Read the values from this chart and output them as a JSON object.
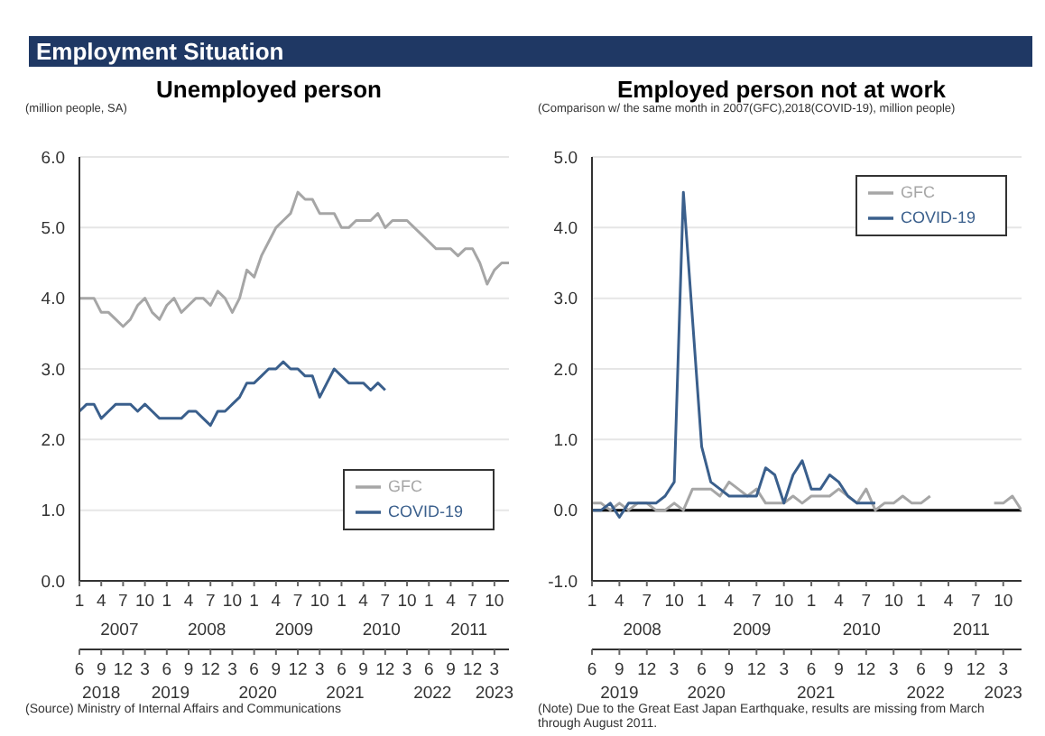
{
  "chart_data": [
    {
      "type": "line",
      "title": "Unemployed person",
      "ylabel": "(million people, SA)",
      "annotations": [
        "Employment Situation",
        "(Source) Ministry of Internal Affairs and Communications",
        "2007",
        "2008",
        "2009",
        "2010",
        "2011",
        "2018",
        "2019",
        "2020",
        "2021",
        "2022",
        "2023"
      ],
      "grid": "y",
      "legend": "bottom right",
      "marker": "none",
      "line_style": "solid",
      "ylim": [
        0,
        6
      ],
      "yticks": [
        {
          "value": 0,
          "label": "0.0"
        },
        {
          "value": 1,
          "label": "1.0"
        },
        {
          "value": 2,
          "label": "2.0"
        },
        {
          "value": 3,
          "label": "3.0"
        },
        {
          "value": 4,
          "label": "4.0"
        },
        {
          "value": 5,
          "label": "5.0"
        },
        {
          "value": 6,
          "label": "6.0"
        }
      ],
      "xlim": [
        "2007-01",
        "2011-12"
      ],
      "xticks": [
        {
          "value": "2007-01",
          "label": "1"
        },
        {
          "value": "2007-04",
          "label": "4"
        },
        {
          "value": "2007-07",
          "label": "7"
        },
        {
          "value": "2007-10",
          "label": "10"
        },
        {
          "value": "2008-01",
          "label": "1"
        },
        {
          "value": "2008-04",
          "label": "4"
        },
        {
          "value": "2008-07",
          "label": "7"
        },
        {
          "value": "2008-10",
          "label": "10"
        },
        {
          "value": "2009-01",
          "label": "1"
        },
        {
          "value": "2009-04",
          "label": "4"
        },
        {
          "value": "2009-07",
          "label": "7"
        },
        {
          "value": "2009-10",
          "label": "10"
        },
        {
          "value": "2010-01",
          "label": "1"
        },
        {
          "value": "2010-04",
          "label": "4"
        },
        {
          "value": "2010-07",
          "label": "7"
        },
        {
          "value": "2010-10",
          "label": "10"
        },
        {
          "value": "2011-01",
          "label": "1"
        },
        {
          "value": "2011-04",
          "label": "4"
        },
        {
          "value": "2011-07",
          "label": "7"
        },
        {
          "value": "2011-10",
          "label": "10"
        }
      ],
      "x2lim": [
        "2018-06",
        "2023-05"
      ],
      "x2ticks": [
        {
          "value": "2018-06",
          "label": "6"
        },
        {
          "value": "2018-09",
          "label": "9"
        },
        {
          "value": "2018-12",
          "label": "12"
        },
        {
          "value": "2019-03",
          "label": "3"
        },
        {
          "value": "2019-06",
          "label": "6"
        },
        {
          "value": "2019-09",
          "label": "9"
        },
        {
          "value": "2019-12",
          "label": "12"
        },
        {
          "value": "2020-03",
          "label": "3"
        },
        {
          "value": "2020-06",
          "label": "6"
        },
        {
          "value": "2020-09",
          "label": "9"
        },
        {
          "value": "2020-12",
          "label": "12"
        },
        {
          "value": "2021-03",
          "label": "3"
        },
        {
          "value": "2021-06",
          "label": "6"
        },
        {
          "value": "2021-09",
          "label": "9"
        },
        {
          "value": "2021-12",
          "label": "12"
        },
        {
          "value": "2022-03",
          "label": "3"
        },
        {
          "value": "2022-06",
          "label": "6"
        },
        {
          "value": "2022-09",
          "label": "9"
        },
        {
          "value": "2022-12",
          "label": "12"
        },
        {
          "value": "2023-03",
          "label": "3"
        }
      ],
      "series": [
        {
          "name": "GFC",
          "color": "#a6a6a6",
          "x": [
            "2007-01",
            "2007-02",
            "2007-03",
            "2007-04",
            "2007-05",
            "2007-06",
            "2007-07",
            "2007-08",
            "2007-09",
            "2007-10",
            "2007-11",
            "2007-12",
            "2008-01",
            "2008-02",
            "2008-03",
            "2008-04",
            "2008-05",
            "2008-06",
            "2008-07",
            "2008-08",
            "2008-09",
            "2008-10",
            "2008-11",
            "2008-12",
            "2009-01",
            "2009-02",
            "2009-03",
            "2009-04",
            "2009-05",
            "2009-06",
            "2009-07",
            "2009-08",
            "2009-09",
            "2009-10",
            "2009-11",
            "2009-12",
            "2010-01",
            "2010-02",
            "2010-03",
            "2010-04",
            "2010-05",
            "2010-06",
            "2010-07",
            "2010-08",
            "2010-09",
            "2010-10",
            "2010-11",
            "2010-12",
            "2011-01",
            "2011-02",
            "2011-03",
            "2011-04",
            "2011-05",
            "2011-06",
            "2011-07",
            "2011-08",
            "2011-09",
            "2011-10",
            "2011-11",
            "2011-12"
          ],
          "values": [
            4.0,
            4.0,
            4.0,
            3.8,
            3.8,
            3.7,
            3.6,
            3.7,
            3.9,
            4.0,
            3.8,
            3.7,
            3.9,
            4.0,
            3.8,
            3.9,
            4.0,
            4.0,
            3.9,
            4.1,
            4.0,
            3.8,
            4.0,
            4.4,
            4.3,
            4.6,
            4.8,
            5.0,
            5.1,
            5.2,
            5.5,
            5.4,
            5.4,
            5.2,
            5.2,
            5.2,
            5.0,
            5.0,
            5.1,
            5.1,
            5.1,
            5.2,
            5.0,
            5.1,
            5.1,
            5.1,
            5.0,
            4.9,
            4.8,
            4.7,
            4.7,
            4.7,
            4.6,
            4.7,
            4.7,
            4.5,
            4.2,
            4.4,
            4.5,
            4.5
          ]
        },
        {
          "name": "COVID-19",
          "color": "#3a5f8c",
          "axis": "x2",
          "x": [
            "2018-06",
            "2018-07",
            "2018-08",
            "2018-09",
            "2018-10",
            "2018-11",
            "2018-12",
            "2019-01",
            "2019-02",
            "2019-03",
            "2019-04",
            "2019-05",
            "2019-06",
            "2019-07",
            "2019-08",
            "2019-09",
            "2019-10",
            "2019-11",
            "2019-12",
            "2020-01",
            "2020-02",
            "2020-03",
            "2020-04",
            "2020-05",
            "2020-06",
            "2020-07",
            "2020-08",
            "2020-09",
            "2020-10",
            "2020-11",
            "2020-12",
            "2021-01",
            "2021-02",
            "2021-03",
            "2021-04",
            "2021-05",
            "2021-06",
            "2021-07",
            "2021-08",
            "2021-09",
            "2021-10",
            "2021-11",
            "2021-12"
          ],
          "values": [
            2.4,
            2.5,
            2.5,
            2.3,
            2.4,
            2.5,
            2.5,
            2.5,
            2.4,
            2.5,
            2.4,
            2.3,
            2.3,
            2.3,
            2.3,
            2.4,
            2.4,
            2.3,
            2.2,
            2.4,
            2.4,
            2.5,
            2.6,
            2.8,
            2.8,
            2.9,
            3.0,
            3.0,
            3.1,
            3.0,
            3.0,
            2.9,
            2.9,
            2.6,
            2.8,
            3.0,
            2.9,
            2.8,
            2.8,
            2.8,
            2.7,
            2.8,
            2.7
          ]
        }
      ]
    },
    {
      "type": "line",
      "title": "Employed person not at work",
      "ylabel": "(Comparison w/ the same month in 2007(GFC),2018(COVID-19), million people)",
      "annotations": [
        "(Note) Due to the Great East Japan Earthquake, results are missing from March through August 2011.",
        "2008",
        "2009",
        "2010",
        "2011",
        "2019",
        "2020",
        "2021",
        "2022",
        "2023"
      ],
      "grid": "y",
      "legend": "top right",
      "marker": "none",
      "line_style": "solid",
      "ref_lines": [
        {
          "axis": "y",
          "value": 0,
          "color": "#000000"
        }
      ],
      "ylim": [
        -1,
        5
      ],
      "yticks": [
        {
          "value": -1,
          "label": "-1.0"
        },
        {
          "value": 0,
          "label": "0.0"
        },
        {
          "value": 1,
          "label": "1.0"
        },
        {
          "value": 2,
          "label": "2.0"
        },
        {
          "value": 3,
          "label": "3.0"
        },
        {
          "value": 4,
          "label": "4.0"
        },
        {
          "value": 5,
          "label": "5.0"
        }
      ],
      "xlim": [
        "2008-01",
        "2011-12"
      ],
      "xticks": [
        {
          "value": "2008-01",
          "label": "1"
        },
        {
          "value": "2008-04",
          "label": "4"
        },
        {
          "value": "2008-07",
          "label": "7"
        },
        {
          "value": "2008-10",
          "label": "10"
        },
        {
          "value": "2009-01",
          "label": "1"
        },
        {
          "value": "2009-04",
          "label": "4"
        },
        {
          "value": "2009-07",
          "label": "7"
        },
        {
          "value": "2009-10",
          "label": "10"
        },
        {
          "value": "2010-01",
          "label": "1"
        },
        {
          "value": "2010-04",
          "label": "4"
        },
        {
          "value": "2010-07",
          "label": "7"
        },
        {
          "value": "2010-10",
          "label": "10"
        },
        {
          "value": "2011-01",
          "label": "1"
        },
        {
          "value": "2011-04",
          "label": "4"
        },
        {
          "value": "2011-07",
          "label": "7"
        },
        {
          "value": "2011-10",
          "label": "10"
        }
      ],
      "x2lim": [
        "2019-06",
        "2023-05"
      ],
      "x2ticks": [
        {
          "value": "2019-06",
          "label": "6"
        },
        {
          "value": "2019-09",
          "label": "9"
        },
        {
          "value": "2019-12",
          "label": "12"
        },
        {
          "value": "2020-03",
          "label": "3"
        },
        {
          "value": "2020-06",
          "label": "6"
        },
        {
          "value": "2020-09",
          "label": "9"
        },
        {
          "value": "2020-12",
          "label": "12"
        },
        {
          "value": "2021-03",
          "label": "3"
        },
        {
          "value": "2021-06",
          "label": "6"
        },
        {
          "value": "2021-09",
          "label": "9"
        },
        {
          "value": "2021-12",
          "label": "12"
        },
        {
          "value": "2022-03",
          "label": "3"
        },
        {
          "value": "2022-06",
          "label": "6"
        },
        {
          "value": "2022-09",
          "label": "9"
        },
        {
          "value": "2022-12",
          "label": "12"
        },
        {
          "value": "2023-03",
          "label": "3"
        }
      ],
      "series": [
        {
          "name": "GFC",
          "color": "#a6a6a6",
          "x": [
            "2008-01",
            "2008-02",
            "2008-03",
            "2008-04",
            "2008-05",
            "2008-06",
            "2008-07",
            "2008-08",
            "2008-09",
            "2008-10",
            "2008-11",
            "2008-12",
            "2009-01",
            "2009-02",
            "2009-03",
            "2009-04",
            "2009-05",
            "2009-06",
            "2009-07",
            "2009-08",
            "2009-09",
            "2009-10",
            "2009-11",
            "2009-12",
            "2010-01",
            "2010-02",
            "2010-03",
            "2010-04",
            "2010-05",
            "2010-06",
            "2010-07",
            "2010-08",
            "2010-09",
            "2010-10",
            "2010-11",
            "2010-12",
            "2011-01",
            "2011-02",
            "2011-03",
            "2011-04",
            "2011-05",
            "2011-06",
            "2011-07",
            "2011-08",
            "2011-09",
            "2011-10",
            "2011-11",
            "2011-12"
          ],
          "values": [
            0.1,
            0.1,
            0.0,
            0.1,
            0.0,
            0.1,
            0.1,
            0.0,
            0.0,
            0.1,
            0.0,
            0.3,
            0.3,
            0.3,
            0.2,
            0.4,
            0.3,
            0.2,
            0.3,
            0.1,
            0.1,
            0.1,
            0.2,
            0.1,
            0.2,
            0.2,
            0.2,
            0.3,
            0.2,
            0.1,
            0.3,
            0.0,
            0.1,
            0.1,
            0.2,
            0.1,
            0.1,
            0.2,
            null,
            null,
            null,
            null,
            null,
            null,
            0.1,
            0.1,
            0.2,
            0.0
          ]
        },
        {
          "name": "COVID-19",
          "color": "#3a5f8c",
          "axis": "x2",
          "x": [
            "2019-06",
            "2019-07",
            "2019-08",
            "2019-09",
            "2019-10",
            "2019-11",
            "2019-12",
            "2020-01",
            "2020-02",
            "2020-03",
            "2020-04",
            "2020-05",
            "2020-06",
            "2020-07",
            "2020-08",
            "2020-09",
            "2020-10",
            "2020-11",
            "2020-12",
            "2021-01",
            "2021-02",
            "2021-03",
            "2021-04",
            "2021-05",
            "2021-06",
            "2021-07",
            "2021-08",
            "2021-09",
            "2021-10",
            "2021-11",
            "2021-12",
            "2022-01"
          ],
          "values": [
            0.0,
            0.0,
            0.1,
            -0.1,
            0.1,
            0.1,
            0.1,
            0.1,
            0.2,
            0.4,
            4.5,
            2.7,
            0.9,
            0.4,
            0.3,
            0.2,
            0.2,
            0.2,
            0.2,
            0.6,
            0.5,
            0.1,
            0.5,
            0.7,
            0.3,
            0.3,
            0.5,
            0.4,
            0.2,
            0.1,
            0.1,
            0.1
          ]
        }
      ]
    }
  ]
}
